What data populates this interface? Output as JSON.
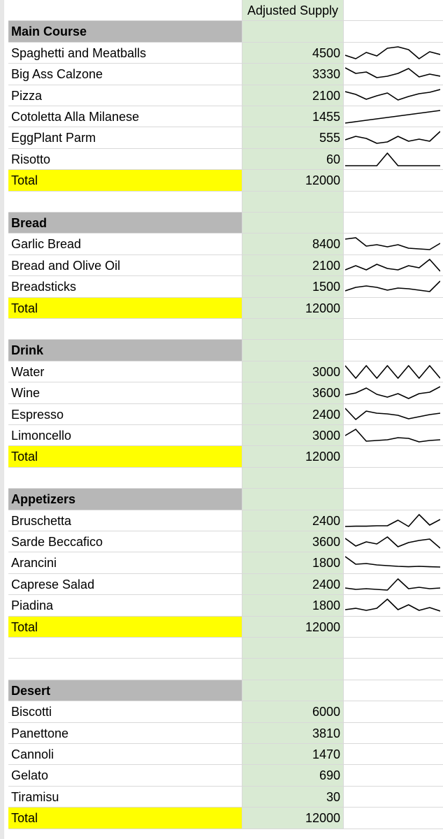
{
  "column_header": "Adjusted Supply",
  "rows": [
    {
      "type": "header-row",
      "name": "",
      "value": ""
    },
    {
      "type": "category",
      "name": "Main Course",
      "value": ""
    },
    {
      "type": "item",
      "name": "Spaghetti and Meatballs",
      "value": "4500",
      "spark": [
        0.35,
        0.1,
        0.55,
        0.3,
        0.85,
        0.95,
        0.75,
        0.1,
        0.6,
        0.4
      ]
    },
    {
      "type": "item",
      "name": "Big Ass Calzone",
      "value": "3330",
      "spark": [
        0.95,
        0.55,
        0.65,
        0.25,
        0.35,
        0.55,
        0.9,
        0.3,
        0.5,
        0.35
      ]
    },
    {
      "type": "item",
      "name": "Pizza",
      "value": "2100",
      "spark": [
        0.8,
        0.6,
        0.25,
        0.5,
        0.7,
        0.2,
        0.45,
        0.65,
        0.75,
        0.95
      ]
    },
    {
      "type": "item",
      "name": "Cotoletta Alla Milanese",
      "value": "1455",
      "spark": [
        0.05,
        0.15,
        0.25,
        0.35,
        0.45,
        0.55,
        0.65,
        0.75,
        0.85,
        0.95
      ]
    },
    {
      "type": "item",
      "name": "EggPlant Parm",
      "value": "555",
      "spark": [
        0.35,
        0.6,
        0.45,
        0.1,
        0.2,
        0.6,
        0.25,
        0.4,
        0.25,
        0.95
      ]
    },
    {
      "type": "item",
      "name": "Risotto",
      "value": "60",
      "spark": [
        0.05,
        0.05,
        0.05,
        0.05,
        0.95,
        0.05,
        0.05,
        0.05,
        0.05,
        0.05
      ]
    },
    {
      "type": "total",
      "name": "Total",
      "value": "12000"
    },
    {
      "type": "blank",
      "name": "",
      "value": ""
    },
    {
      "type": "category",
      "name": "Bread",
      "value": ""
    },
    {
      "type": "item",
      "name": "Garlic Bread",
      "value": "8400",
      "spark": [
        0.85,
        0.95,
        0.35,
        0.45,
        0.3,
        0.45,
        0.2,
        0.15,
        0.1,
        0.55
      ]
    },
    {
      "type": "item",
      "name": "Bread and Olive Oil",
      "value": "2100",
      "spark": [
        0.2,
        0.5,
        0.2,
        0.6,
        0.3,
        0.2,
        0.5,
        0.35,
        0.95,
        0.1
      ]
    },
    {
      "type": "item",
      "name": "Breadsticks",
      "value": "1500",
      "spark": [
        0.2,
        0.45,
        0.55,
        0.45,
        0.25,
        0.4,
        0.35,
        0.25,
        0.15,
        0.9
      ]
    },
    {
      "type": "total",
      "name": "Total",
      "value": "12000"
    },
    {
      "type": "blank",
      "name": "",
      "value": ""
    },
    {
      "type": "category",
      "name": "Drink",
      "value": ""
    },
    {
      "type": "item",
      "name": "Water",
      "value": "3000",
      "spark": [
        0.95,
        0.05,
        0.95,
        0.05,
        0.95,
        0.05,
        0.95,
        0.05,
        0.95,
        0.05
      ]
    },
    {
      "type": "item",
      "name": "Wine",
      "value": "3600",
      "spark": [
        0.35,
        0.5,
        0.85,
        0.4,
        0.2,
        0.45,
        0.1,
        0.45,
        0.55,
        0.95
      ]
    },
    {
      "type": "item",
      "name": "Espresso",
      "value": "2400",
      "spark": [
        0.95,
        0.15,
        0.75,
        0.6,
        0.55,
        0.45,
        0.2,
        0.35,
        0.5,
        0.6
      ]
    },
    {
      "type": "item",
      "name": "Limoncello",
      "value": "3000",
      "spark": [
        0.5,
        0.95,
        0.1,
        0.15,
        0.2,
        0.35,
        0.3,
        0.05,
        0.15,
        0.2
      ]
    },
    {
      "type": "total",
      "name": "Total",
      "value": "12000"
    },
    {
      "type": "blank",
      "name": "",
      "value": ""
    },
    {
      "type": "category",
      "name": "Appetizers",
      "value": ""
    },
    {
      "type": "item",
      "name": "Bruschetta",
      "value": "2400",
      "spark": [
        0.1,
        0.12,
        0.12,
        0.15,
        0.15,
        0.55,
        0.1,
        0.95,
        0.2,
        0.6
      ]
    },
    {
      "type": "item",
      "name": "Sarde Beccafico",
      "value": "3600",
      "spark": [
        0.75,
        0.2,
        0.5,
        0.35,
        0.85,
        0.15,
        0.45,
        0.6,
        0.7,
        0.05
      ]
    },
    {
      "type": "item",
      "name": "Arancini",
      "value": "1800",
      "spark": [
        0.95,
        0.4,
        0.45,
        0.35,
        0.3,
        0.25,
        0.22,
        0.25,
        0.22,
        0.2
      ]
    },
    {
      "type": "item",
      "name": "Caprese Salad",
      "value": "2400",
      "spark": [
        0.25,
        0.15,
        0.2,
        0.15,
        0.1,
        0.9,
        0.2,
        0.3,
        0.2,
        0.25
      ]
    },
    {
      "type": "item",
      "name": "Piadina",
      "value": "1800",
      "spark": [
        0.2,
        0.3,
        0.15,
        0.3,
        0.95,
        0.2,
        0.55,
        0.15,
        0.35,
        0.1
      ]
    },
    {
      "type": "total",
      "name": "Total",
      "value": "12000"
    },
    {
      "type": "blank",
      "name": "",
      "value": ""
    },
    {
      "type": "blank",
      "name": "",
      "value": ""
    },
    {
      "type": "category",
      "name": "Desert",
      "value": ""
    },
    {
      "type": "item",
      "name": "Biscotti",
      "value": "6000"
    },
    {
      "type": "item",
      "name": "Panettone",
      "value": "3810"
    },
    {
      "type": "item",
      "name": "Cannoli",
      "value": "1470"
    },
    {
      "type": "item",
      "name": "Gelato",
      "value": "690"
    },
    {
      "type": "item",
      "name": "Tiramisu",
      "value": "30"
    },
    {
      "type": "total",
      "name": "Total",
      "value": "12000"
    }
  ]
}
